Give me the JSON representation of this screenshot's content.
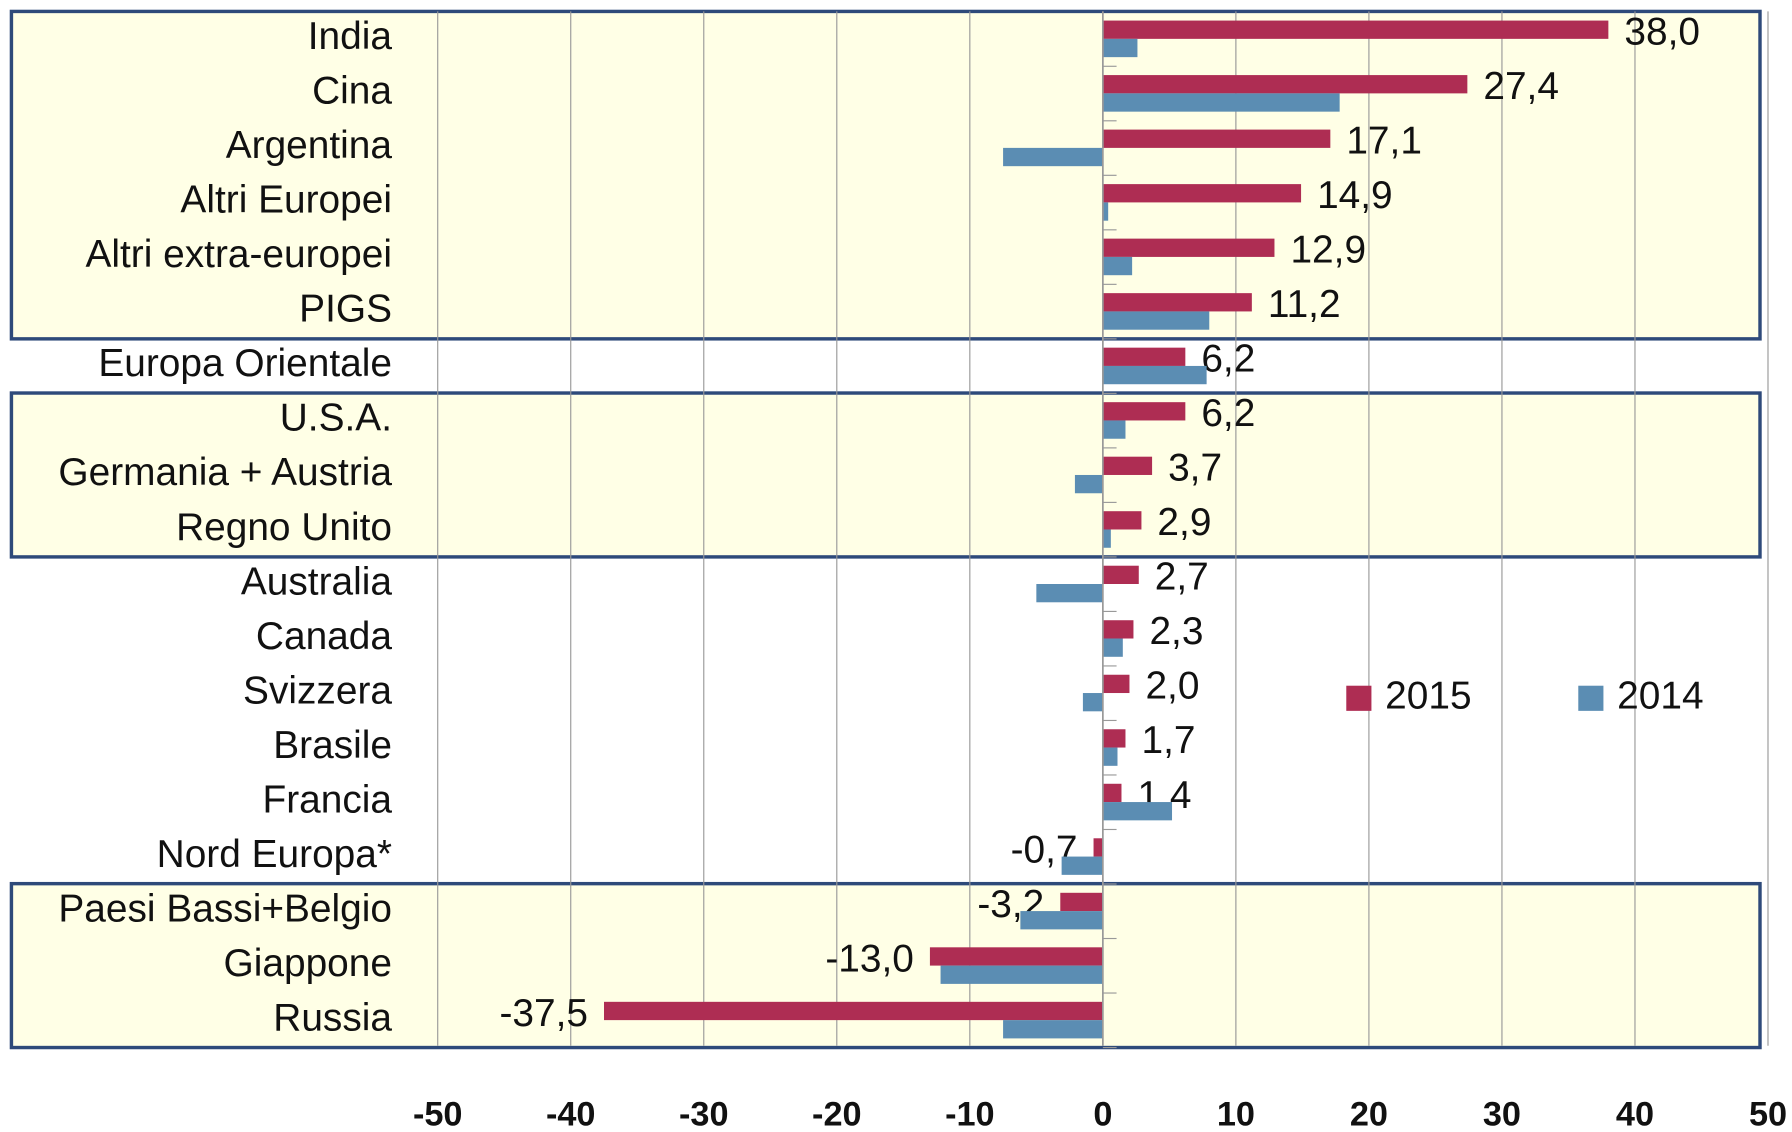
{
  "chart_data": {
    "type": "hbar",
    "categories": [
      "India",
      "Cina",
      "Argentina",
      "Altri Europei",
      "Altri extra-europei",
      "PIGS",
      "Europa Orientale",
      "U.S.A.",
      "Germania + Austria",
      "Regno Unito",
      "Australia",
      "Canada",
      "Svizzera",
      "Brasile",
      "Francia",
      "Nord Europa*",
      "Paesi Bassi+Belgio",
      "Giappone",
      "Russia"
    ],
    "series": [
      {
        "name": "2015",
        "color": "#ae2d53",
        "values": [
          38.0,
          27.4,
          17.1,
          14.9,
          12.9,
          11.2,
          6.2,
          6.2,
          3.7,
          2.9,
          2.7,
          2.3,
          2.0,
          1.7,
          1.4,
          -0.7,
          -3.2,
          -13.0,
          -37.5
        ],
        "value_labels": [
          "38,0",
          "27,4",
          "17,1",
          "14,9",
          "12,9",
          "11,2",
          "6,2",
          "6,2",
          "3,7",
          "2,9",
          "2,7",
          "2,3",
          "2,0",
          "1,7",
          "1,4",
          "-0,7",
          "-3,2",
          "-13,0",
          "-37,5"
        ]
      },
      {
        "name": "2014",
        "color": "#5b8db3",
        "values": [
          2.6,
          17.8,
          -7.5,
          0.4,
          2.2,
          8.0,
          7.8,
          1.7,
          -2.1,
          0.6,
          -5.0,
          1.5,
          -1.5,
          1.1,
          5.2,
          -3.1,
          -6.2,
          -12.2,
          -7.5
        ]
      }
    ],
    "xlim": [
      -50,
      50
    ],
    "xticks": [
      -50,
      -40,
      -30,
      -20,
      -10,
      0,
      10,
      20,
      30,
      40,
      50
    ],
    "grid": true,
    "legend": "right"
  }
}
